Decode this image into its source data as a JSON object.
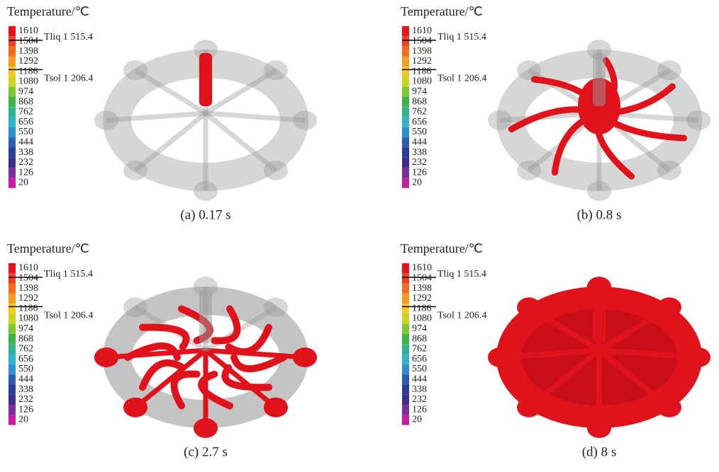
{
  "legend": {
    "title": "Temperature/℃",
    "ticks": [
      "1610",
      "1504",
      "1398",
      "1292",
      "1186",
      "1080",
      "974",
      "868",
      "762",
      "656",
      "550",
      "444",
      "338",
      "232",
      "126",
      "20"
    ],
    "colors": [
      "#e8141c",
      "#f0401e",
      "#f56a1f",
      "#f79a1e",
      "#f7c81a",
      "#c8d41e",
      "#7cc832",
      "#3cb44a",
      "#2fb48c",
      "#2eb4c8",
      "#2c8fd0",
      "#2c5cb8",
      "#2c3c9c",
      "#3c2c94",
      "#7c2c9c",
      "#c81ca0"
    ],
    "liquidus": "Tliq 1 515.4",
    "solidus": "Tsol 1 206.4"
  },
  "panels": [
    {
      "caption": "(a) 0.17 s"
    },
    {
      "caption": "(b) 0.8 s"
    },
    {
      "caption": "(c) 2.7 s"
    },
    {
      "caption": "(d) 8 s"
    }
  ]
}
